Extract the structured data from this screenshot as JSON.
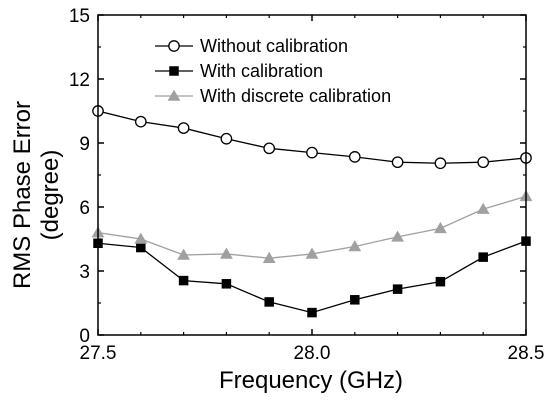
{
  "chart_data": {
    "type": "line",
    "xlabel": "Frequency (GHz)",
    "ylabel_lines": [
      "RMS Phase Error",
      "(degree)"
    ],
    "xlim": [
      27.5,
      28.5
    ],
    "ylim": [
      0,
      15
    ],
    "xticks": [
      27.5,
      28.0,
      28.5
    ],
    "xtick_labels": [
      "27.5",
      "28.0",
      "28.5"
    ],
    "yticks": [
      0,
      3,
      6,
      9,
      12,
      15
    ],
    "ytick_labels": [
      "0",
      "3",
      "6",
      "9",
      "12",
      "15"
    ],
    "grid": false,
    "legend_position": "top-center",
    "x": [
      27.5,
      27.6,
      27.7,
      27.8,
      27.9,
      28.0,
      28.1,
      28.2,
      28.3,
      28.4,
      28.5
    ],
    "series": [
      {
        "name": "Without calibration",
        "marker": "open-circle",
        "color": "#000000",
        "values": [
          10.5,
          10.0,
          9.7,
          9.2,
          8.75,
          8.55,
          8.35,
          8.1,
          8.05,
          8.1,
          8.3
        ]
      },
      {
        "name": "With calibration",
        "marker": "filled-square",
        "color": "#000000",
        "values": [
          4.3,
          4.1,
          2.55,
          2.4,
          1.55,
          1.05,
          1.65,
          2.15,
          2.5,
          3.65,
          4.4
        ]
      },
      {
        "name": "With discrete calibration",
        "marker": "filled-triangle",
        "color": "#a0a0a0",
        "values": [
          4.8,
          4.5,
          3.75,
          3.8,
          3.6,
          3.8,
          4.15,
          4.6,
          5.0,
          5.9,
          6.5
        ]
      }
    ]
  }
}
